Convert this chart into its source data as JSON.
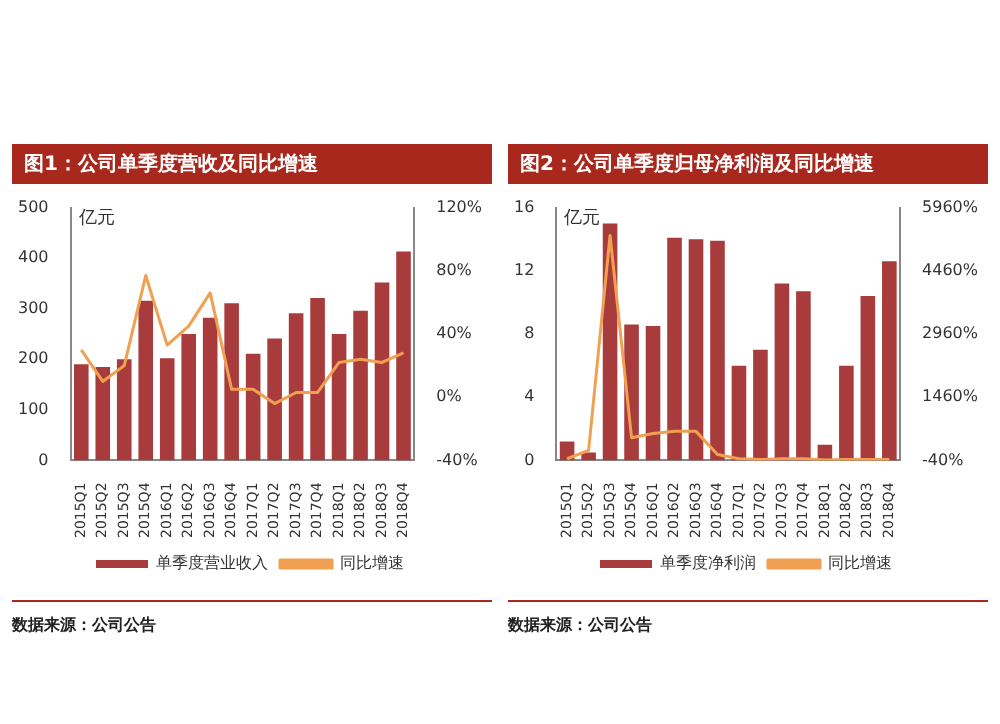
{
  "chart_data": [
    {
      "type": "bar",
      "title": "图1：公司单季度营收及同比增速",
      "ylabel": "亿元",
      "categories": [
        "2015Q1",
        "2015Q2",
        "2015Q3",
        "2015Q4",
        "2016Q1",
        "2016Q2",
        "2016Q3",
        "2016Q4",
        "2017Q1",
        "2017Q2",
        "2017Q3",
        "2017Q4",
        "2018Q1",
        "2018Q2",
        "2018Q3",
        "2018Q4"
      ],
      "series": [
        {
          "name": "单季度营业收入",
          "color": "#a83c3c",
          "values": [
            190,
            185,
            200,
            316,
            202,
            250,
            282,
            311,
            211,
            241,
            291,
            321,
            250,
            296,
            352,
            413
          ]
        },
        {
          "name": "同比增速",
          "type": "line",
          "axis": "y2",
          "color": "#f0a050",
          "values": [
            30,
            10,
            20,
            77,
            33,
            45,
            66,
            5,
            5,
            -4,
            3,
            3,
            22,
            24,
            22,
            28
          ]
        }
      ],
      "ylim": [
        0,
        500
      ],
      "yticks": [
        0,
        100,
        200,
        300,
        400,
        500
      ],
      "y2lim": [
        -40,
        120
      ],
      "y2ticks": [
        {
          "value": -40,
          "label": "-40%"
        },
        {
          "value": 0,
          "label": "0%"
        },
        {
          "value": 40,
          "label": "40%"
        },
        {
          "value": 80,
          "label": "80%"
        },
        {
          "value": 120,
          "label": "120%"
        }
      ],
      "grid": false,
      "legend": "bottom",
      "marker": "none",
      "annotations": [
        "数据来源：公司公告"
      ]
    },
    {
      "type": "bar",
      "title": "图2：公司单季度归母净利润及同比增速",
      "ylabel": "亿元",
      "categories": [
        "2015Q1",
        "2015Q2",
        "2015Q3",
        "2015Q4",
        "2016Q1",
        "2016Q2",
        "2016Q3",
        "2016Q4",
        "2017Q1",
        "2017Q2",
        "2017Q3",
        "2017Q4",
        "2018Q1",
        "2018Q2",
        "2018Q3",
        "2018Q4"
      ],
      "series": [
        {
          "name": "单季度净利润",
          "color": "#a83c3c",
          "values": [
            1.2,
            0.5,
            15.0,
            8.6,
            8.5,
            14.1,
            14.0,
            13.9,
            6,
            7,
            11.2,
            10.7,
            1.0,
            6,
            10.4,
            12.6
          ]
        },
        {
          "name": "同比增速",
          "type": "line",
          "axis": "y2",
          "color": "#f0a050",
          "values": [
            0,
            200,
            5300,
            500,
            600,
            650,
            650,
            100,
            0,
            -20,
            0,
            0,
            -30,
            -20,
            -20,
            -20
          ]
        }
      ],
      "ylim": [
        0,
        16
      ],
      "yticks": [
        0,
        4,
        8,
        12,
        16
      ],
      "y2lim": [
        -40,
        5960
      ],
      "y2ticks": [
        {
          "value": -40,
          "label": "-40%"
        },
        {
          "value": 1460,
          "label": "1460%"
        },
        {
          "value": 2960,
          "label": "2960%"
        },
        {
          "value": 4460,
          "label": "4460%"
        },
        {
          "value": 5960,
          "label": "5960%"
        }
      ],
      "grid": false,
      "legend": "bottom",
      "marker": "none",
      "annotations": [
        "数据来源：公司公告"
      ]
    }
  ]
}
